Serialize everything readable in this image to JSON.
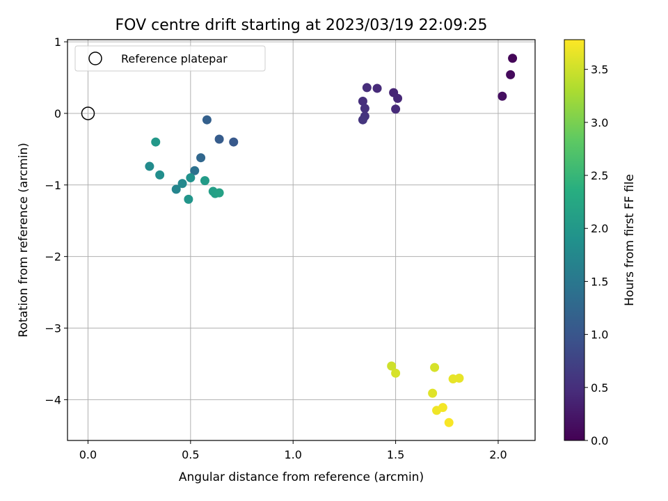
{
  "chart_data": {
    "type": "scatter",
    "title": "FOV centre drift starting at 2023/03/19 22:09:25",
    "xlabel": "Angular distance from reference (arcmin)",
    "ylabel": "Rotation from reference (arcmin)",
    "colorbar_label": "Hours from first FF file",
    "xlim": [
      -0.1,
      2.18
    ],
    "ylim": [
      -4.57,
      1.03
    ],
    "xticks": [
      0.0,
      0.5,
      1.0,
      1.5,
      2.0
    ],
    "xtick_labels": [
      "0.0",
      "0.5",
      "1.0",
      "1.5",
      "2.0"
    ],
    "yticks": [
      1,
      0,
      -1,
      -2,
      -3,
      -4
    ],
    "ytick_labels": [
      "1",
      "0",
      "−1",
      "−2",
      "−3",
      "−4"
    ],
    "colorbar_range": [
      0.0,
      3.78
    ],
    "colorbar_ticks": [
      0.0,
      0.5,
      1.0,
      1.5,
      2.0,
      2.5,
      3.0,
      3.5
    ],
    "colorbar_tick_labels": [
      "0.0",
      "0.5",
      "1.0",
      "1.5",
      "2.0",
      "2.5",
      "3.0",
      "3.5"
    ],
    "colormap": "viridis",
    "grid": true,
    "legend": {
      "placement": "top-left",
      "entries": [
        "Reference platepar"
      ]
    },
    "reference_point": {
      "x": 0.0,
      "y": 0.0
    },
    "points": [
      {
        "x": 2.07,
        "y": 0.77,
        "hours": 0.05
      },
      {
        "x": 2.06,
        "y": 0.54,
        "hours": 0.1
      },
      {
        "x": 2.02,
        "y": 0.24,
        "hours": 0.15
      },
      {
        "x": 1.49,
        "y": 0.29,
        "hours": 0.4
      },
      {
        "x": 1.51,
        "y": 0.21,
        "hours": 0.42
      },
      {
        "x": 1.41,
        "y": 0.35,
        "hours": 0.45
      },
      {
        "x": 1.36,
        "y": 0.36,
        "hours": 0.48
      },
      {
        "x": 1.34,
        "y": 0.17,
        "hours": 0.5
      },
      {
        "x": 1.35,
        "y": 0.07,
        "hours": 0.52
      },
      {
        "x": 1.35,
        "y": -0.04,
        "hours": 0.55
      },
      {
        "x": 1.34,
        "y": -0.09,
        "hours": 0.57
      },
      {
        "x": 1.5,
        "y": 0.06,
        "hours": 0.45
      },
      {
        "x": 0.71,
        "y": -0.4,
        "hours": 1.05
      },
      {
        "x": 0.64,
        "y": -0.36,
        "hours": 1.1
      },
      {
        "x": 0.58,
        "y": -0.09,
        "hours": 1.15
      },
      {
        "x": 0.55,
        "y": -0.62,
        "hours": 1.25
      },
      {
        "x": 0.52,
        "y": -0.8,
        "hours": 1.4
      },
      {
        "x": 0.43,
        "y": -1.06,
        "hours": 1.7
      },
      {
        "x": 0.46,
        "y": -0.98,
        "hours": 1.75
      },
      {
        "x": 0.3,
        "y": -0.74,
        "hours": 1.8
      },
      {
        "x": 0.35,
        "y": -0.86,
        "hours": 1.85
      },
      {
        "x": 0.5,
        "y": -0.9,
        "hours": 1.9
      },
      {
        "x": 0.49,
        "y": -1.2,
        "hours": 1.95
      },
      {
        "x": 0.33,
        "y": -0.4,
        "hours": 2.0
      },
      {
        "x": 0.57,
        "y": -0.94,
        "hours": 2.05
      },
      {
        "x": 0.61,
        "y": -1.09,
        "hours": 2.1
      },
      {
        "x": 0.62,
        "y": -1.12,
        "hours": 2.12
      },
      {
        "x": 0.64,
        "y": -1.11,
        "hours": 2.15
      },
      {
        "x": 1.48,
        "y": -3.53,
        "hours": 3.5
      },
      {
        "x": 1.5,
        "y": -3.63,
        "hours": 3.55
      },
      {
        "x": 1.69,
        "y": -3.55,
        "hours": 3.55
      },
      {
        "x": 1.68,
        "y": -3.91,
        "hours": 3.6
      },
      {
        "x": 1.78,
        "y": -3.71,
        "hours": 3.65
      },
      {
        "x": 1.81,
        "y": -3.7,
        "hours": 3.65
      },
      {
        "x": 1.7,
        "y": -4.15,
        "hours": 3.7
      },
      {
        "x": 1.73,
        "y": -4.11,
        "hours": 3.72
      },
      {
        "x": 1.76,
        "y": -4.32,
        "hours": 3.75
      }
    ]
  }
}
